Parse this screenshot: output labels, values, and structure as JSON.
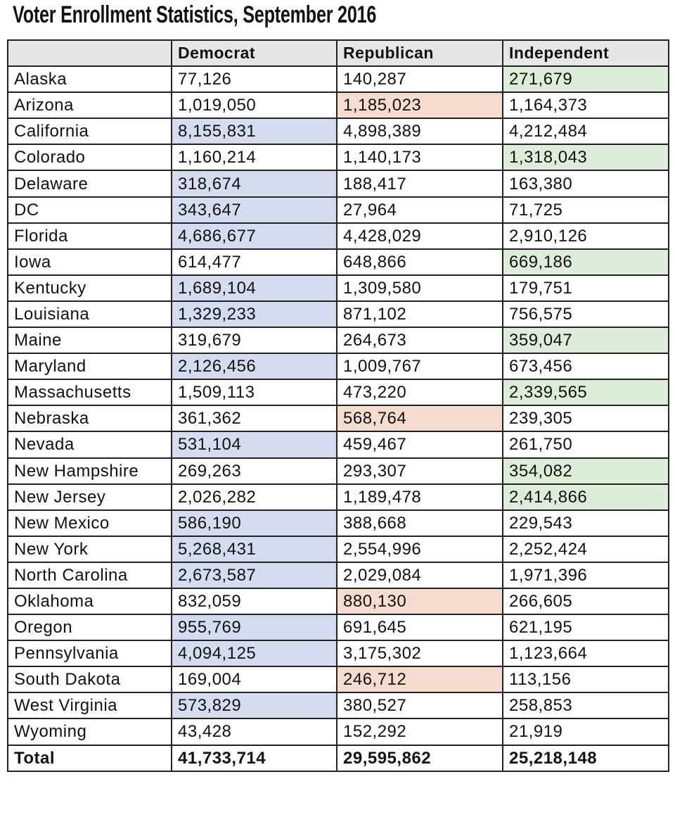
{
  "header": {
    "title": "Voter Enrollment Statistics, September 2016"
  },
  "table": {
    "columns": [
      "Democrat",
      "Republican",
      "Independent"
    ],
    "highlight_colors": [
      "#d6dcef",
      "#f6dbcf",
      "#deecda"
    ],
    "header_color": "#e6e6e6",
    "rows": [
      {
        "cells": [
          "Alaska",
          "77,126",
          "140,287",
          "271,679"
        ],
        "highlight": 3
      },
      {
        "cells": [
          "Arizona",
          "1,019,050",
          "1,185,023",
          "1,164,373"
        ],
        "highlight": 2
      },
      {
        "cells": [
          "California",
          "8,155,831",
          "4,898,389",
          "4,212,484"
        ],
        "highlight": 1
      },
      {
        "cells": [
          "Colorado",
          "1,160,214",
          "1,140,173",
          "1,318,043"
        ],
        "highlight": 3
      },
      {
        "cells": [
          "Delaware",
          "318,674",
          "188,417",
          "163,380"
        ],
        "highlight": 1
      },
      {
        "cells": [
          "DC",
          "343,647",
          "27,964",
          "71,725"
        ],
        "highlight": 1
      },
      {
        "cells": [
          "Florida",
          "4,686,677",
          "4,428,029",
          "2,910,126"
        ],
        "highlight": 1
      },
      {
        "cells": [
          "Iowa",
          "614,477",
          "648,866",
          "669,186"
        ],
        "highlight": 3
      },
      {
        "cells": [
          "Kentucky",
          "1,689,104",
          "1,309,580",
          "179,751"
        ],
        "highlight": 1
      },
      {
        "cells": [
          "Louisiana",
          "1,329,233",
          "871,102",
          "756,575"
        ],
        "highlight": 1
      },
      {
        "cells": [
          "Maine",
          "319,679",
          "264,673",
          "359,047"
        ],
        "highlight": 3
      },
      {
        "cells": [
          "Maryland",
          "2,126,456",
          "1,009,767",
          "673,456"
        ],
        "highlight": 1
      },
      {
        "cells": [
          "Massachusetts",
          "1,509,113",
          "473,220",
          "2,339,565"
        ],
        "highlight": 3
      },
      {
        "cells": [
          "Nebraska",
          "361,362",
          "568,764",
          "239,305"
        ],
        "highlight": 2
      },
      {
        "cells": [
          "Nevada",
          "531,104",
          "459,467",
          "261,750"
        ],
        "highlight": 1
      },
      {
        "cells": [
          "New Hampshire",
          "269,263",
          "293,307",
          "354,082"
        ],
        "highlight": 3
      },
      {
        "cells": [
          "New Jersey",
          "2,026,282",
          "1,189,478",
          "2,414,866"
        ],
        "highlight": 3
      },
      {
        "cells": [
          "New Mexico",
          "586,190",
          "388,668",
          "229,543"
        ],
        "highlight": 1
      },
      {
        "cells": [
          "New York",
          "5,268,431",
          "2,554,996",
          "2,252,424"
        ],
        "highlight": 1
      },
      {
        "cells": [
          "North Carolina",
          "2,673,587",
          "2,029,084",
          "1,971,396"
        ],
        "highlight": 1
      },
      {
        "cells": [
          "Oklahoma",
          "832,059",
          "880,130",
          "266,605"
        ],
        "highlight": 2
      },
      {
        "cells": [
          "Oregon",
          "955,769",
          "691,645",
          "621,195"
        ],
        "highlight": 1
      },
      {
        "cells": [
          "Pennsylvania",
          "4,094,125",
          "3,175,302",
          "1,123,664"
        ],
        "highlight": 1
      },
      {
        "cells": [
          "South Dakota",
          "169,004",
          "246,712",
          "113,156"
        ],
        "highlight": 2
      },
      {
        "cells": [
          "West Virginia",
          "573,829",
          "380,527",
          "258,853"
        ],
        "highlight": 1
      },
      {
        "cells": [
          "Wyoming",
          "43,428",
          "152,292",
          "21,919"
        ]
      }
    ],
    "total": [
      "Total",
      "41,733,714",
      "29,595,862",
      "25,218,148"
    ]
  }
}
